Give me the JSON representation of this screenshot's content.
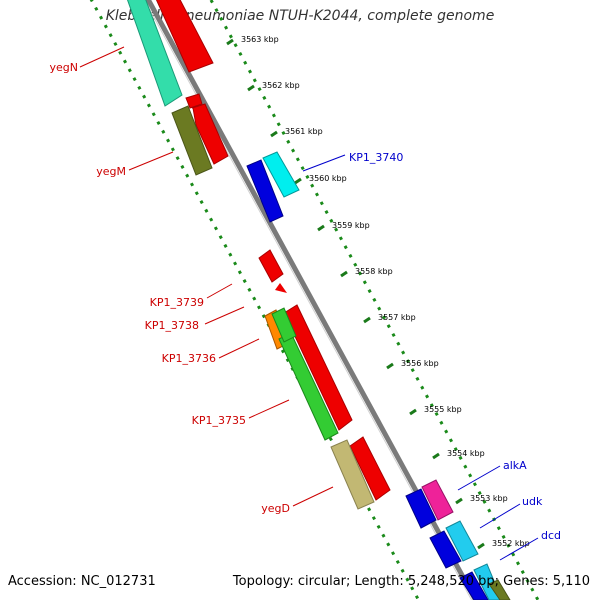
{
  "title": "Klebsiella pneumoniae NTUH-K2044, complete genome",
  "footer": {
    "accession": "Accession: NC_012731",
    "topology": "Topology: circular; Length: 5,248,520 bp; Genes: 5,110"
  },
  "colors": {
    "backbone": "#7a7a7a",
    "tick": "#1a7a1a",
    "red_label": "#cc0000",
    "blue_label": "#0000cc"
  },
  "ticks": [
    "3563 kbp",
    "3562 kbp",
    "3561 kbp",
    "3560 kbp",
    "3559 kbp",
    "3558 kbp",
    "3557 kbp",
    "3556 kbp",
    "3555 kbp",
    "3554 kbp",
    "3553 kbp",
    "3552 kbp"
  ],
  "gene_labels": [
    {
      "name": "yegN",
      "color": "red"
    },
    {
      "name": "yegM",
      "color": "red"
    },
    {
      "name": "KP1_3740",
      "color": "blue"
    },
    {
      "name": "KP1_3739",
      "color": "red"
    },
    {
      "name": "KP1_3738",
      "color": "red"
    },
    {
      "name": "KP1_3736",
      "color": "red"
    },
    {
      "name": "KP1_3735",
      "color": "red"
    },
    {
      "name": "yegD",
      "color": "red"
    },
    {
      "name": "alkA",
      "color": "blue"
    },
    {
      "name": "udk",
      "color": "blue"
    },
    {
      "name": "dcd",
      "color": "blue"
    }
  ]
}
